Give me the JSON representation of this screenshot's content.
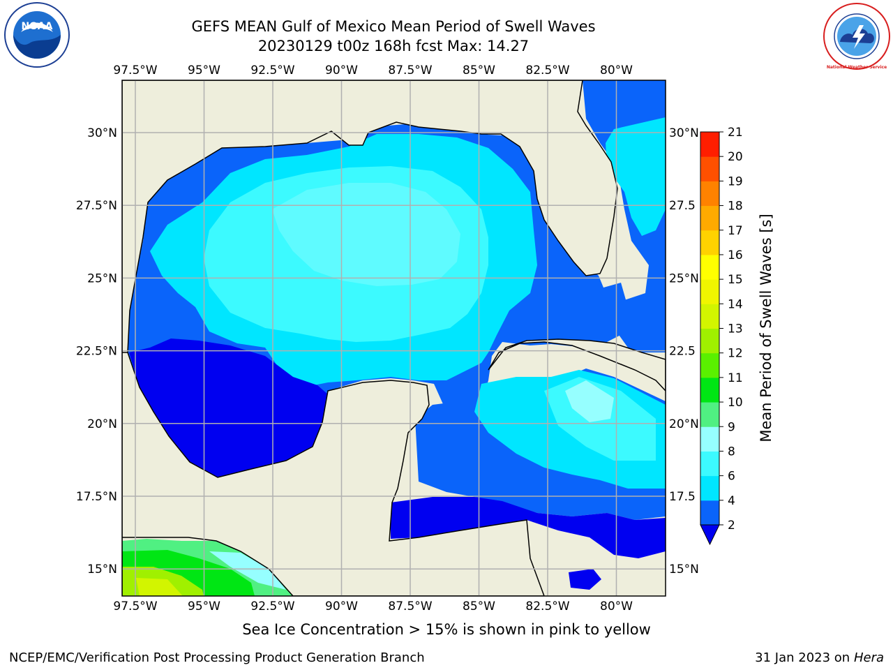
{
  "header": {
    "title_line1": "GEFS MEAN Gulf of Mexico Mean Period of Swell Waves",
    "title_line2": "20230129 t00z 168h fcst   Max: 14.27"
  },
  "logos": {
    "left": {
      "name": "NOAA",
      "ring_text": "NATIONAL OCEANIC AND ATMOSPHERIC ADMINISTRATION · U.S. DEPARTMENT OF COMMERCE"
    },
    "right": {
      "name": "National Weather Service",
      "ring_text": "NATIONAL WEATHER SERVICE"
    }
  },
  "map": {
    "lon_labels": [
      "97.5°W",
      "95°W",
      "92.5°W",
      "90°W",
      "87.5°W",
      "85°W",
      "82.5°W",
      "80°W"
    ],
    "lat_labels": [
      "30°N",
      "27.5°N",
      "25°N",
      "22.5°N",
      "20°N",
      "17.5°N",
      "15°N"
    ],
    "right_lat_labels": [
      "30°N",
      "27.5",
      "25°N",
      "22.5",
      "20°N",
      "17.5",
      "15°N"
    ],
    "land_color": "#eeeedc",
    "grid_color": "#b0b0b0"
  },
  "colorbar": {
    "label": "Mean Period of Swell Waves [s]",
    "ticks": [
      "2",
      "4",
      "6",
      "8",
      "9",
      "10",
      "11",
      "12",
      "13",
      "14",
      "15",
      "16",
      "17",
      "18",
      "19",
      "20",
      "21"
    ],
    "colors": [
      "#0a64fa",
      "#00e6ff",
      "#3cfaff",
      "#96ffff",
      "#50f082",
      "#00e614",
      "#5af000",
      "#a0f000",
      "#d2f500",
      "#f0f500",
      "#ffff00",
      "#ffd200",
      "#ffaa00",
      "#ff8200",
      "#ff5000",
      "#ff1e00"
    ],
    "extend_color": "#0000f0"
  },
  "footer": {
    "note": "Sea Ice Concentration > 15% is shown in pink to yellow",
    "left": "NCEP/EMC/Verification Post Processing Product Generation Branch",
    "right_date": "31 Jan 2023 on",
    "right_host": "Hera"
  }
}
